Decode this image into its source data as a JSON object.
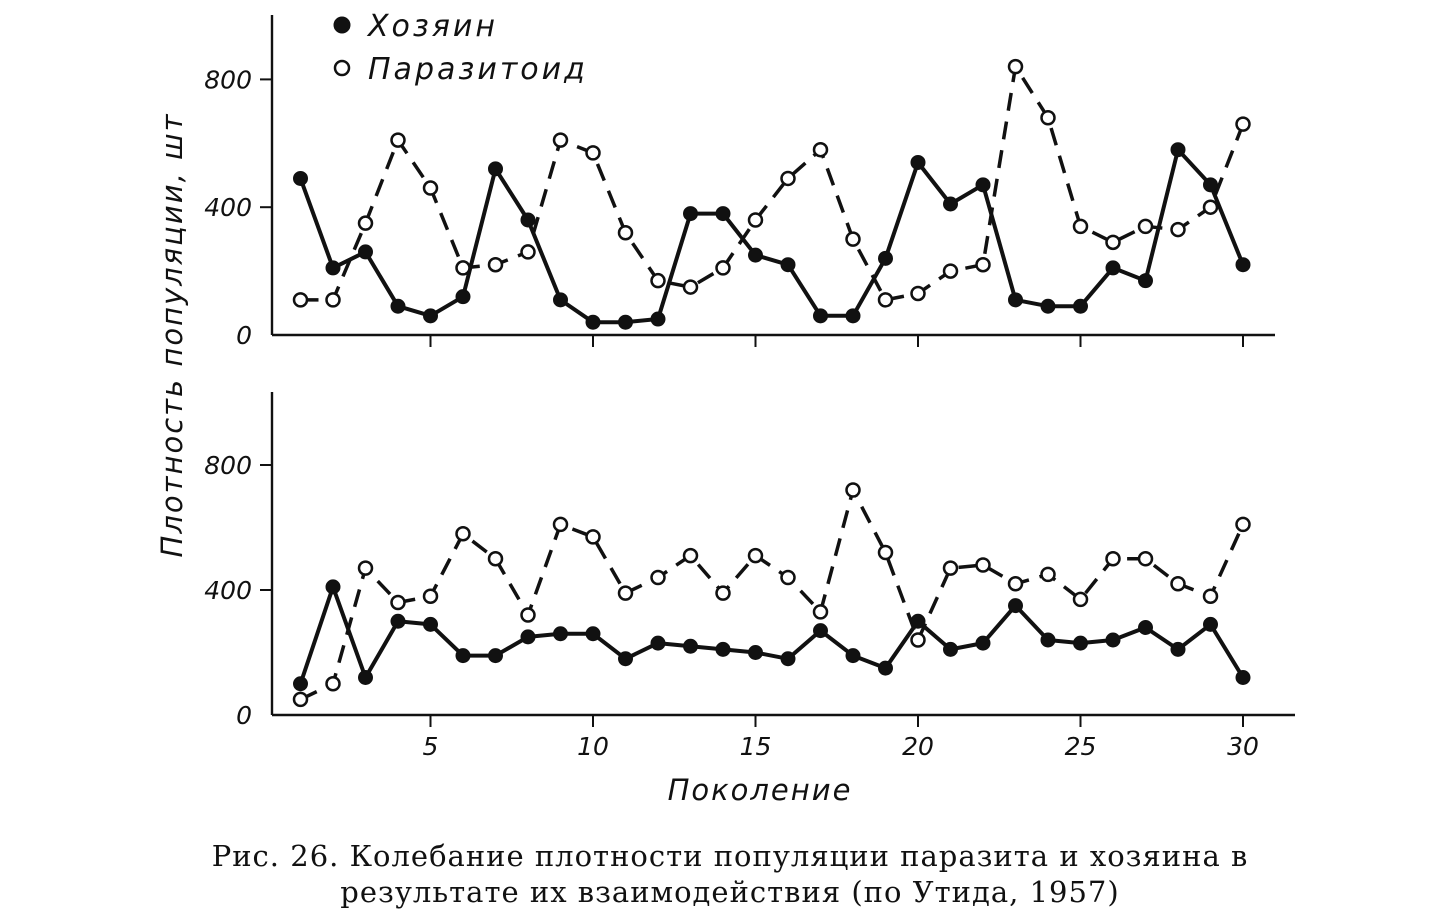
{
  "chart_data": [
    {
      "type": "line",
      "ylabel": "Плотность популяции, шт",
      "xlabel": "",
      "xlim": [
        0,
        31.5
      ],
      "ylim": [
        0,
        1000
      ],
      "yticks": [
        0,
        400,
        800
      ],
      "xticks": [
        5,
        10,
        15,
        20,
        25,
        30
      ],
      "show_x_tick_labels": false,
      "legend": {
        "placement": "top-left",
        "entries": [
          {
            "label": "Хозяин",
            "marker": "filled-circle"
          },
          {
            "label": "Паразитоид",
            "marker": "open-circle"
          }
        ]
      },
      "series": [
        {
          "name": "Хозяин",
          "style": "solid",
          "x": [
            1,
            2,
            3,
            4,
            5,
            6,
            7,
            8,
            9,
            10,
            11,
            12,
            13,
            14,
            15,
            16,
            17,
            18,
            19,
            20,
            21,
            22,
            23,
            24,
            25,
            26,
            27,
            28,
            29,
            30
          ],
          "values": [
            490,
            210,
            260,
            90,
            60,
            120,
            520,
            360,
            110,
            40,
            40,
            50,
            380,
            380,
            250,
            220,
            60,
            60,
            240,
            540,
            410,
            470,
            110,
            90,
            90,
            210,
            170,
            580,
            470,
            220
          ]
        },
        {
          "name": "Паразитоид",
          "style": "dashed",
          "x": [
            1,
            2,
            3,
            4,
            5,
            6,
            7,
            8,
            9,
            10,
            11,
            12,
            13,
            14,
            15,
            16,
            17,
            18,
            19,
            20,
            21,
            22,
            23,
            24,
            25,
            26,
            27,
            28,
            29,
            30
          ],
          "values": [
            110,
            110,
            350,
            610,
            460,
            210,
            220,
            260,
            610,
            570,
            320,
            170,
            150,
            210,
            360,
            490,
            580,
            300,
            110,
            130,
            200,
            220,
            840,
            680,
            340,
            290,
            340,
            330,
            400,
            660
          ]
        }
      ]
    },
    {
      "type": "line",
      "ylabel": "",
      "xlabel": "Поколение",
      "xlim": [
        0,
        31.5
      ],
      "ylim": [
        0,
        1000
      ],
      "yticks": [
        0,
        400,
        800
      ],
      "xticks": [
        5,
        10,
        15,
        20,
        25,
        30
      ],
      "show_x_tick_labels": true,
      "series": [
        {
          "name": "Хозяин",
          "style": "solid",
          "x": [
            1,
            2,
            3,
            4,
            5,
            6,
            7,
            8,
            9,
            10,
            11,
            12,
            13,
            14,
            15,
            16,
            17,
            18,
            19,
            20,
            21,
            22,
            23,
            24,
            25,
            26,
            27,
            28,
            29,
            30
          ],
          "values": [
            100,
            410,
            120,
            300,
            290,
            190,
            190,
            250,
            260,
            260,
            180,
            230,
            220,
            210,
            200,
            180,
            270,
            190,
            150,
            300,
            210,
            230,
            350,
            240,
            230,
            240,
            280,
            210,
            290,
            120
          ]
        },
        {
          "name": "Паразитоид",
          "style": "dashed",
          "x": [
            1,
            2,
            3,
            4,
            5,
            6,
            7,
            8,
            9,
            10,
            11,
            12,
            13,
            14,
            15,
            16,
            17,
            18,
            19,
            20,
            21,
            22,
            23,
            24,
            25,
            26,
            27,
            28,
            29,
            30
          ],
          "values": [
            50,
            100,
            470,
            360,
            380,
            580,
            500,
            320,
            610,
            570,
            390,
            440,
            510,
            390,
            510,
            440,
            330,
            720,
            520,
            240,
            470,
            480,
            420,
            450,
            370,
            500,
            500,
            420,
            380,
            610
          ]
        }
      ]
    }
  ],
  "caption": {
    "line1": "Рис. 26. Колебание плотности популяции паразита и хозяина в",
    "line2": "результате их взаимодействия (по Утида, 1957)"
  }
}
